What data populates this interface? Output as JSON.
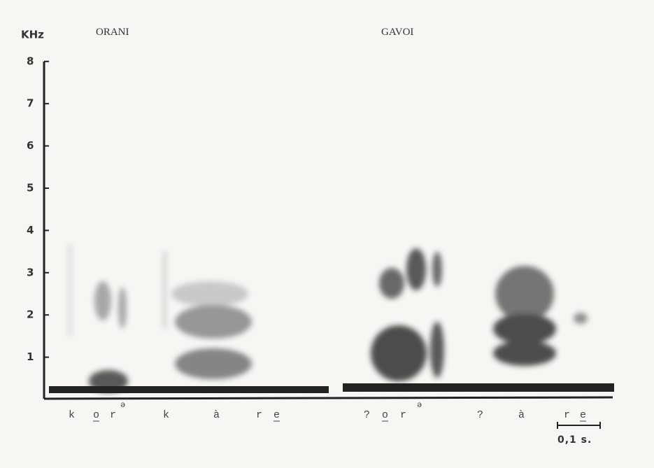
{
  "axis": {
    "unit": "KHz",
    "ticks": [
      1,
      2,
      3,
      4,
      5,
      6,
      7,
      8
    ]
  },
  "panels": [
    {
      "title": "ORANI",
      "segments": [
        "k",
        "o",
        "r",
        "ə",
        "k",
        "à",
        "r",
        "e"
      ]
    },
    {
      "title": "GAVOI",
      "segments": [
        "?",
        "o",
        "r",
        "ə",
        "?",
        "à",
        "r",
        "e"
      ]
    }
  ],
  "scale_bar": "0,1 s."
}
